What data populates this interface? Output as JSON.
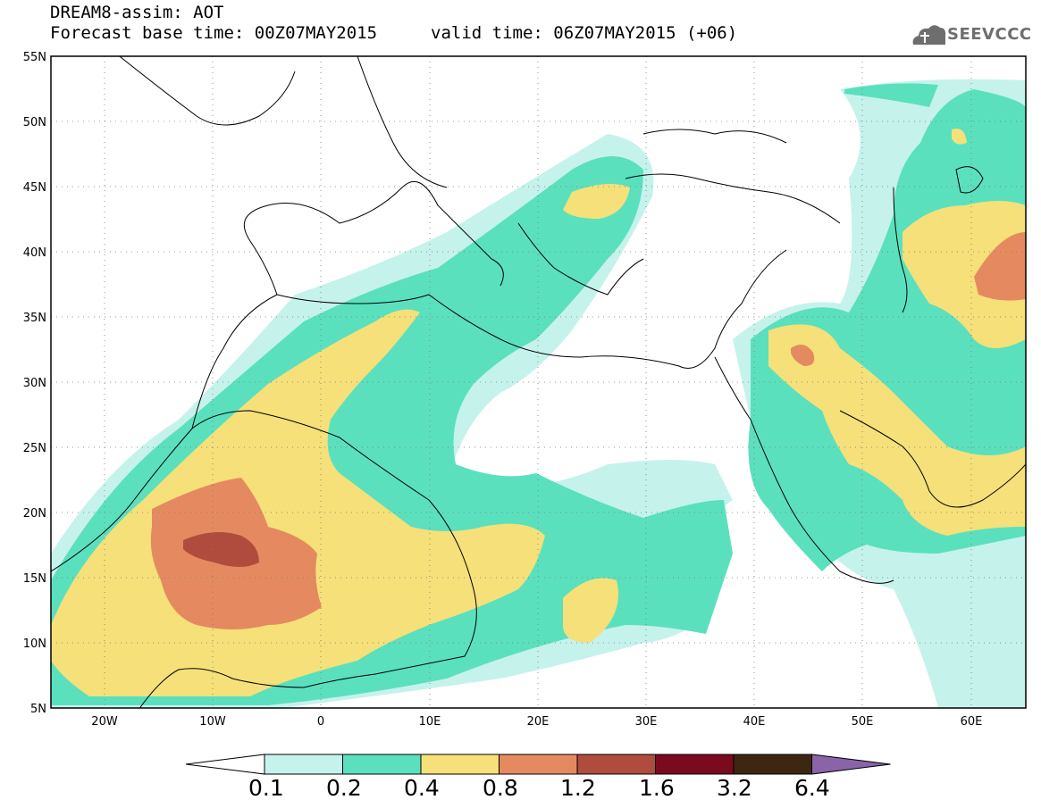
{
  "header": {
    "title": "DREAM8-assim: AOT",
    "base_time": "Forecast base time: 00Z07MAY2015",
    "valid_time": "valid time: 06Z07MAY2015 (+06)",
    "logo_text": "SEEVCCC"
  },
  "map": {
    "lon_range": [
      -25,
      65
    ],
    "lat_range": [
      5,
      55
    ],
    "lat_ticks": [
      "5N",
      "10N",
      "15N",
      "20N",
      "25N",
      "30N",
      "35N",
      "40N",
      "45N",
      "50N",
      "55N"
    ],
    "lon_ticks": [
      "20W",
      "10W",
      "0",
      "10E",
      "20E",
      "30E",
      "40E",
      "50E",
      "60E"
    ],
    "grid": true,
    "variable": "Aerosol optical thickness (AOT)"
  },
  "colorbar": {
    "labels": [
      "0.1",
      "0.2",
      "0.4",
      "0.8",
      "1.2",
      "1.6",
      "3.2",
      "6.4"
    ],
    "colors": [
      "#ffffff",
      "#c6f2ec",
      "#5be0bd",
      "#f5e07a",
      "#e58a60",
      "#b04c3d",
      "#7b0a1e",
      "#3d2712",
      "#8a63a8"
    ]
  },
  "colors": {
    "frame": "#000000",
    "grid": "#777777",
    "logo": "#6e6e6e"
  }
}
